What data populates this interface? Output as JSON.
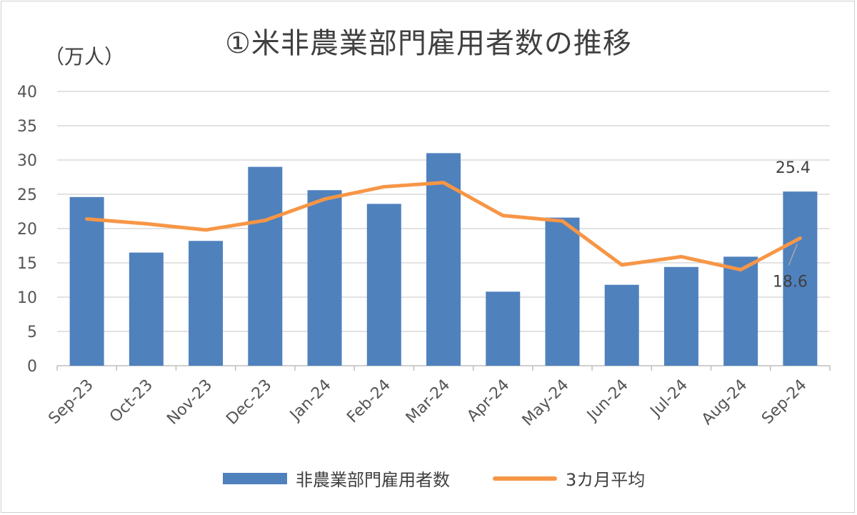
{
  "chart_data": {
    "type": "bar",
    "title": "①米非農業部門雇用者数の推移",
    "unit_label": "（万人）",
    "categories": [
      "Sep-23",
      "Oct-23",
      "Nov-23",
      "Dec-23",
      "Jan-24",
      "Feb-24",
      "Mar-24",
      "Apr-24",
      "May-24",
      "Jun-24",
      "Jul-24",
      "Aug-24",
      "Sep-24"
    ],
    "series": [
      {
        "name": "非農業部門雇用者数",
        "type": "bar",
        "color": "#4f81bd",
        "values": [
          24.6,
          16.5,
          18.2,
          29.0,
          25.6,
          23.6,
          31.0,
          10.8,
          21.6,
          11.8,
          14.4,
          15.9,
          25.4
        ]
      },
      {
        "name": "3カ月平均",
        "type": "line",
        "color": "#f79646",
        "values": [
          21.4,
          20.7,
          19.8,
          21.2,
          24.3,
          26.1,
          26.7,
          21.9,
          21.1,
          14.7,
          15.9,
          14.0,
          18.6
        ]
      }
    ],
    "ylim": [
      0,
      40
    ],
    "yticks": [
      0,
      5,
      10,
      15,
      20,
      25,
      30,
      35,
      40
    ],
    "grid": true,
    "legend_position": "bottom",
    "annotations": [
      {
        "series": "非農業部門雇用者数",
        "category": "Sep-24",
        "text": "25.4"
      },
      {
        "series": "3カ月平均",
        "category": "Sep-24",
        "text": "18.6"
      }
    ]
  }
}
